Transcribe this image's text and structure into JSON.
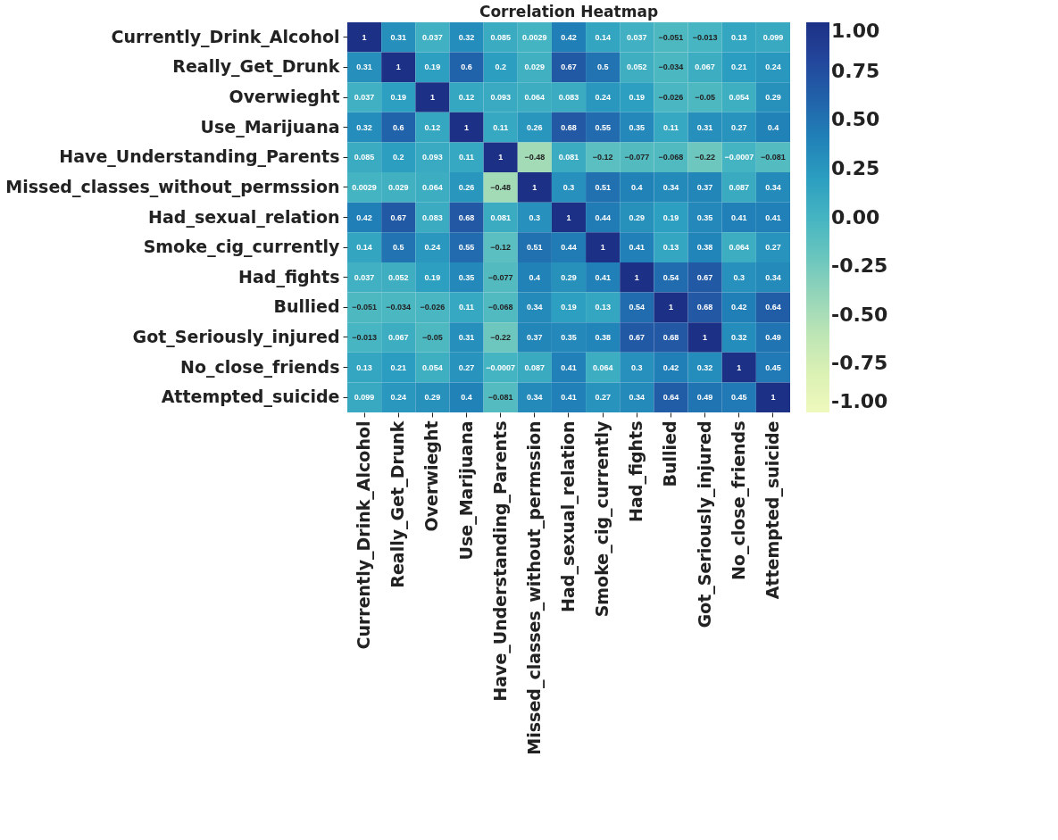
{
  "chart_data": {
    "type": "heatmap",
    "title": "Correlation Heatmap",
    "categories": [
      "Currently_Drink_Alcohol",
      "Really_Get_Drunk",
      "Overwieght",
      "Use_Marijuana",
      "Have_Understanding_Parents",
      "Missed_classes_without_permssion",
      "Had_sexual_relation",
      "Smoke_cig_currently",
      "Had_fights",
      "Bullied",
      "Got_Seriously_injured",
      "No_close_friends",
      "Attempted_suicide"
    ],
    "y_categories": [
      "Currently_Drink_Alcohol",
      "Really_Get_Drunk",
      "Overwieght",
      "Use_Marijuana",
      "Have_Understanding_Parents",
      "Missed_classes_without_permssion",
      "Had_sexual_relation",
      "Smoke_cig_currently",
      "Had_fights",
      "Bullied",
      "Got_Seriously_injured",
      "No_close_friends",
      "Attempted_suicide"
    ],
    "cells": [
      [
        1,
        0.31,
        0.037,
        0.32,
        0.085,
        0.0029,
        0.42,
        0.14,
        0.037,
        -0.051,
        -0.013,
        0.13,
        0.099
      ],
      [
        0.31,
        1,
        0.19,
        0.6,
        0.2,
        0.029,
        0.67,
        0.5,
        0.052,
        -0.034,
        0.067,
        0.21,
        0.24
      ],
      [
        0.037,
        0.19,
        1,
        0.12,
        0.093,
        0.064,
        0.083,
        0.24,
        0.19,
        -0.026,
        -0.05,
        0.054,
        0.29
      ],
      [
        0.32,
        0.6,
        0.12,
        1,
        0.11,
        0.26,
        0.68,
        0.55,
        0.35,
        0.11,
        0.31,
        0.27,
        0.4
      ],
      [
        0.085,
        0.2,
        0.093,
        0.11,
        1,
        -0.48,
        0.081,
        -0.12,
        -0.077,
        -0.068,
        -0.22,
        -0.0007,
        -0.081
      ],
      [
        0.0029,
        0.029,
        0.064,
        0.26,
        -0.48,
        1,
        0.3,
        0.51,
        0.4,
        0.34,
        0.37,
        0.087,
        0.34
      ],
      [
        0.42,
        0.67,
        0.083,
        0.68,
        0.081,
        0.3,
        1,
        0.44,
        0.29,
        0.19,
        0.35,
        0.41,
        0.41
      ],
      [
        0.14,
        0.5,
        0.24,
        0.55,
        -0.12,
        0.51,
        0.44,
        1,
        0.41,
        0.13,
        0.38,
        0.064,
        0.27
      ],
      [
        0.037,
        0.052,
        0.19,
        0.35,
        -0.077,
        0.4,
        0.29,
        0.41,
        1,
        0.54,
        0.67,
        0.3,
        0.34
      ],
      [
        -0.051,
        -0.034,
        -0.026,
        0.11,
        -0.068,
        0.34,
        0.19,
        0.13,
        0.54,
        1,
        0.68,
        0.42,
        0.64
      ],
      [
        -0.013,
        0.067,
        -0.05,
        0.31,
        -0.22,
        0.37,
        0.35,
        0.38,
        0.67,
        0.68,
        1,
        0.32,
        0.49
      ],
      [
        0.13,
        0.21,
        0.054,
        0.27,
        -0.0007,
        0.087,
        0.41,
        0.064,
        0.3,
        0.42,
        0.32,
        1,
        0.45
      ],
      [
        0.099,
        0.24,
        0.29,
        0.4,
        -0.081,
        0.34,
        0.41,
        0.27,
        0.34,
        0.64,
        0.49,
        0.45,
        1
      ]
    ],
    "clim": [
      -1,
      1
    ],
    "cticks": [
      {
        "value": -1,
        "label": "-1.00"
      },
      {
        "value": -0.75,
        "label": "-0.75"
      },
      {
        "value": -0.5,
        "label": "-0.50"
      },
      {
        "value": -0.25,
        "label": "-0.25"
      },
      {
        "value": 0,
        "label": "0.00"
      },
      {
        "value": 0.25,
        "label": "0.25"
      },
      {
        "value": 0.5,
        "label": "0.50"
      },
      {
        "value": 0.75,
        "label": "0.75"
      },
      {
        "value": 1,
        "label": "1.00"
      }
    ],
    "data_labels": true
  }
}
